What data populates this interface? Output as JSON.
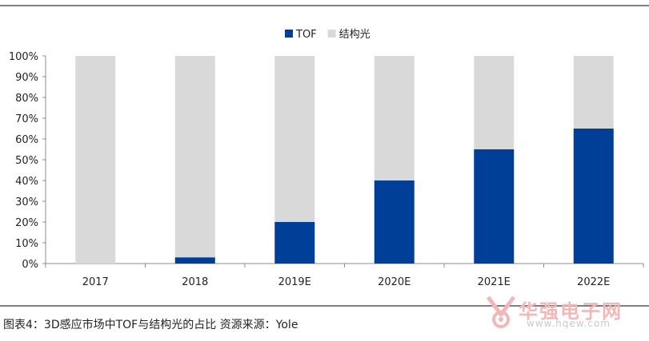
{
  "chart_data": {
    "type": "bar",
    "stacked": true,
    "categories": [
      "2017",
      "2018",
      "2019E",
      "2020E",
      "2021E",
      "2022E"
    ],
    "series": [
      {
        "name": "TOF",
        "color": "#003f98",
        "values": [
          0,
          3,
          20,
          40,
          55,
          65
        ]
      },
      {
        "name": "结构光",
        "color": "#d9d9d9",
        "values": [
          100,
          97,
          80,
          60,
          45,
          35
        ]
      }
    ],
    "yticks": [
      "0%",
      "10%",
      "20%",
      "30%",
      "40%",
      "50%",
      "60%",
      "70%",
      "80%",
      "90%",
      "100%"
    ],
    "ylim": [
      0,
      100
    ],
    "legend_position": "top-center",
    "grid": false
  },
  "caption": "图表4：3D感应市场中TOF与结构光的占比  资源来源：Yole",
  "watermark": {
    "name": "华强电子网",
    "url": "www.hqew.com"
  }
}
